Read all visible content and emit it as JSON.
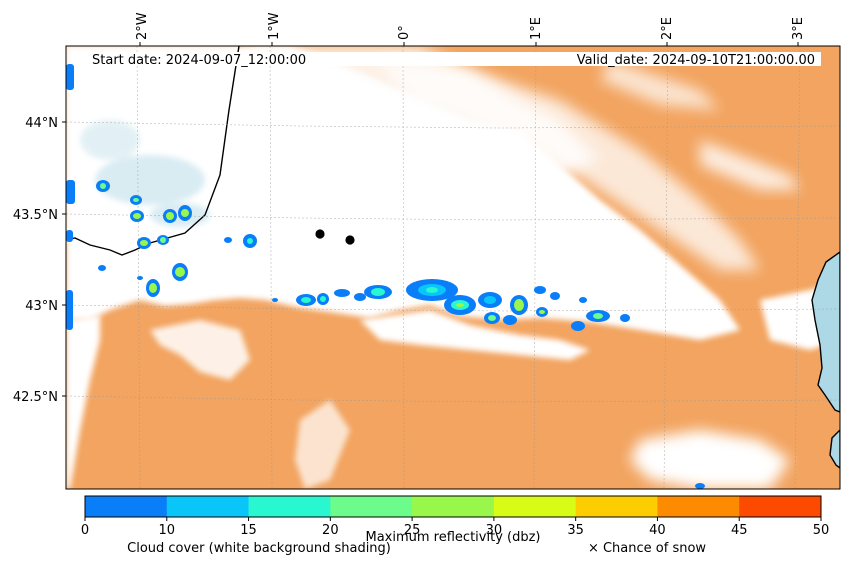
{
  "header": {
    "start_label": "Start date: 2024-09-07_12:00:00",
    "valid_label": "Valid_date: 2024-09-10T21:00:00.00"
  },
  "map": {
    "lon_ticks": [
      "2°W",
      "1°W",
      "0°",
      "1°E",
      "2°E",
      "3°E"
    ],
    "lat_ticks": [
      "44°N",
      "43.5°N",
      "43°N",
      "42.5°N"
    ],
    "land_color": "#f2a460",
    "sea_color": "#add8e6",
    "cloud_color": "#ffffff",
    "coast_color": "#000000",
    "markers": [
      "location-marker",
      "location-marker"
    ]
  },
  "colorbar": {
    "label": "Maximum reflectivity (dbz)",
    "ticks": [
      "0",
      "10",
      "15",
      "20",
      "25",
      "30",
      "35",
      "40",
      "45",
      "50"
    ],
    "colors": [
      "#0a7ef8",
      "#0ac5f8",
      "#28f7cf",
      "#6cfc8c",
      "#99f74c",
      "#d8fc16",
      "#fccd00",
      "#fc8b00",
      "#fc4a00"
    ]
  },
  "legend": {
    "cloud_label": "Cloud cover (white background shading)",
    "snow_label": "× Chance of snow"
  }
}
